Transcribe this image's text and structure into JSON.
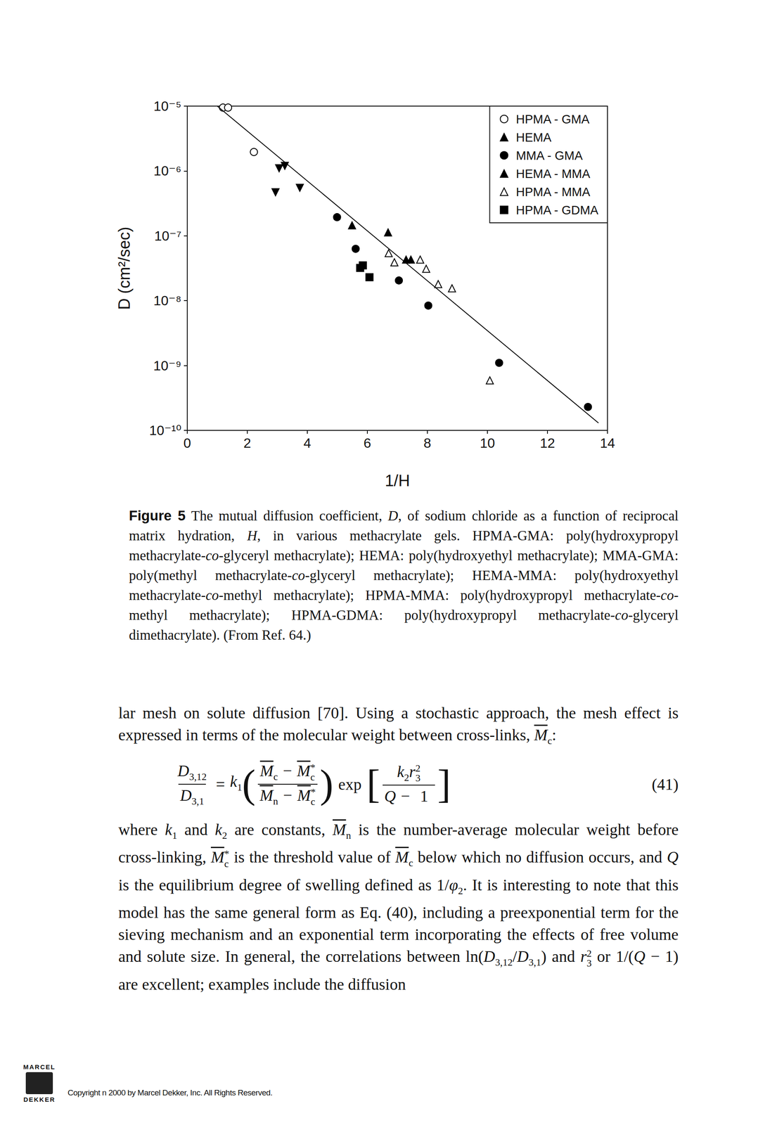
{
  "chart_data": {
    "type": "scatter",
    "xlabel": "1/H",
    "ylabel": "D (cm²/sec)",
    "xlim": [
      0,
      14
    ],
    "xticks": [
      0,
      2,
      4,
      6,
      8,
      10,
      12,
      14
    ],
    "ylim": [
      1e-10,
      1e-05
    ],
    "yticks": [
      {
        "value": 1e-10,
        "label": "10⁻¹⁰"
      },
      {
        "value": 1e-09,
        "label": "10⁻⁹"
      },
      {
        "value": 1e-08,
        "label": "10⁻⁸"
      },
      {
        "value": 1e-07,
        "label": "10⁻⁷"
      },
      {
        "value": 1e-06,
        "label": "10⁻⁶"
      },
      {
        "value": 1e-05,
        "label": "10⁻⁵"
      }
    ],
    "log": "y",
    "grid": false,
    "legend": "upper right",
    "series": [
      {
        "name": "HPMA - GMA",
        "marker": "circle-open",
        "color": "#000000",
        "x": [
          1.19,
          1.36,
          2.22
        ],
        "values": [
          9.5e-06,
          9.5e-06,
          1.96e-06
        ]
      },
      {
        "name": "HEMA",
        "marker": "triangle-down",
        "color": "#000000",
        "x": [
          3.06,
          3.25,
          2.94,
          3.75
        ],
        "values": [
          1.1e-06,
          1.2e-06,
          4.7e-07,
          5.5e-07
        ]
      },
      {
        "name": "MMA - GMA",
        "marker": "circle",
        "color": "#000000",
        "x": [
          4.99,
          5.61,
          7.05,
          8.03,
          10.39,
          13.35
        ],
        "values": [
          1.94e-07,
          6.3e-08,
          2.05e-08,
          8.4e-09,
          1.1e-09,
          2.3e-10
        ]
      },
      {
        "name": "HEMA - MMA",
        "marker": "triangle",
        "color": "#000000",
        "x": [
          5.49,
          6.69,
          7.29,
          7.45
        ],
        "values": [
          1.45e-07,
          1.13e-07,
          4.3e-08,
          4.3e-08
        ]
      },
      {
        "name": "HPMA - MMA",
        "marker": "triangle-open",
        "color": "#000000",
        "x": [
          6.71,
          6.9,
          7.76,
          7.96,
          8.36,
          8.82,
          10.08
        ],
        "values": [
          5.4e-08,
          3.9e-08,
          4.3e-08,
          3.1e-08,
          1.8e-08,
          1.55e-08,
          5.9e-10
        ]
      },
      {
        "name": "HPMA - GDMA",
        "marker": "square",
        "color": "#000000",
        "x": [
          5.76,
          5.85,
          6.07
        ],
        "values": [
          3.2e-08,
          3.5e-08,
          2.3e-08
        ]
      },
      {
        "type": "line",
        "line_style": "solid",
        "color": "#000000",
        "x": [
          1.0,
          13.7
        ],
        "values": [
          1e-05,
          1.3e-10
        ]
      }
    ]
  },
  "caption": [
    {
      "t": "Figure 5",
      "b": true
    },
    "  The mutual diffusion coefficient, ",
    {
      "t": "D",
      "i": true
    },
    ", of sodium chloride as a function of reciprocal matrix hydration, ",
    {
      "t": "H",
      "i": true
    },
    ", in various methacrylate gels. HPMA-GMA: poly(hydroxypropyl methacrylate-",
    {
      "t": "co",
      "i": true
    },
    "-glyceryl methacrylate); HEMA: poly(hydroxyethyl methacrylate); MMA-GMA: poly(methyl methacrylate-",
    {
      "t": "co",
      "i": true
    },
    "-glyceryl methacrylate); HEMA-MMA: poly(hydroxyethyl methacrylate-",
    {
      "t": "co",
      "i": true
    },
    "-methyl methacrylate); HPMA-MMA: poly(hydroxypropyl methacrylate-",
    {
      "t": "co",
      "i": true
    },
    "-methyl methacrylate); HPMA-GDMA: poly(hydroxypropyl methacrylate-",
    {
      "t": "co",
      "i": true
    },
    "-glyceryl dimethacrylate). (From Ref. 64.)"
  ],
  "paragraph_1": [
    "lar mesh on solute diffusion [70]. Using a stochastic approach, the mesh effect is expressed in terms of the molecular weight between cross-links, ",
    {
      "t": "M",
      "i": true,
      "bar": true,
      "sub": "c"
    },
    ":"
  ],
  "equation": {
    "label": "(41)",
    "parts": [
      {
        "frac": [
          [
            {
              "t": "D",
              "i": true,
              "sub": "3,12"
            }
          ],
          [
            {
              "t": "D",
              "i": true,
              "sub": "3,1"
            }
          ]
        ]
      },
      "=",
      {
        "t": "k",
        "i": true,
        "sub": "1"
      },
      {
        "open": "(",
        "close": ")",
        "body": [
          {
            "frac": [
              [
                {
                  "t": "M",
                  "i": true,
                  "bar": true,
                  "sub": "c"
                },
                "−",
                {
                  "t": "M",
                  "i": true,
                  "bar": true,
                  "sub": "c",
                  "sup": "*"
                }
              ],
              [
                {
                  "t": "M",
                  "i": true,
                  "bar": true,
                  "sub": "n"
                },
                "−",
                {
                  "t": "M",
                  "i": true,
                  "bar": true,
                  "sub": "c",
                  "sup": "*"
                }
              ]
            ]
          }
        ]
      },
      "exp",
      {
        "open": "[",
        "close": "]",
        "body": [
          {
            "frac": [
              [
                {
                  "t": "k",
                  "i": true,
                  "sub": "2"
                },
                {
                  "t": "r",
                  "i": true,
                  "sub": "3",
                  "sup": "2"
                }
              ],
              [
                {
                  "t": "Q",
                  "i": true
                },
                "−",
                "1"
              ]
            ]
          }
        ]
      }
    ]
  },
  "paragraph_2": [
    "where ",
    {
      "t": "k",
      "i": true,
      "sub": "1"
    },
    " and ",
    {
      "t": "k",
      "i": true,
      "sub": "2"
    },
    " are constants, ",
    {
      "t": "M",
      "i": true,
      "bar": true,
      "sub": "n"
    },
    " is the number-average molecular weight before cross-linking, ",
    {
      "t": "M",
      "i": true,
      "bar": true,
      "sub": "c",
      "sup": "*"
    },
    " is the threshold value of ",
    {
      "t": "M",
      "i": true,
      "bar": true,
      "sub": "c"
    },
    " below which no diffusion occurs, and ",
    {
      "t": "Q",
      "i": true
    },
    " is the equilibrium degree of swelling defined as 1/",
    {
      "t": "φ",
      "i": true,
      "sub": "2"
    },
    ". It is interesting to note that this model has the same general form as Eq. (40), including a preexponential term for the sieving mechanism and an exponential term incorporating the effects of free volume and solute size. In general, the correlations between ln(",
    {
      "t": "D",
      "i": true,
      "sub": "3,12"
    },
    "/",
    {
      "t": "D",
      "i": true,
      "sub": "3,1"
    },
    ") and ",
    {
      "t": "r",
      "i": true,
      "sub": "3",
      "sup": "2"
    },
    " or 1/(",
    {
      "t": "Q",
      "i": true
    },
    " − 1) are excellent; examples include the diffusion"
  ],
  "footer": {
    "logo_top": "MARCEL",
    "logo_bottom": "DEKKER",
    "copyright": "Copyright n 2000 by Marcel Dekker, Inc. All Rights Reserved."
  }
}
